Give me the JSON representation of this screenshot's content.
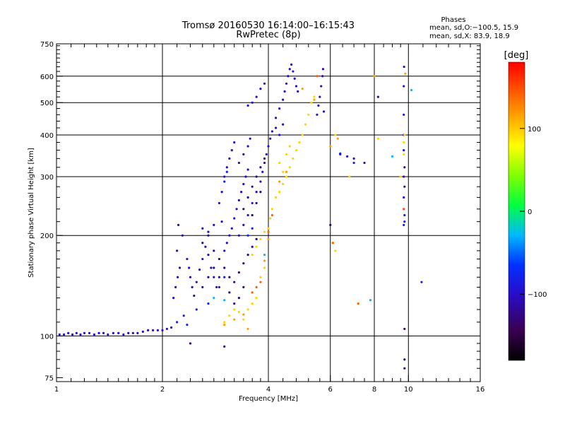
{
  "chart_data": {
    "type": "scatter",
    "title": "Tromsø 20160530 16:14:00–16:15:43",
    "subtitle": "RwPretec (8p)",
    "xlabel": "Frequency [MHz]",
    "ylabel": "Stationary phase Virtual Height [km]",
    "x_scale": "log",
    "y_scale": "log",
    "xlim": [
      1,
      16
    ],
    "ylim": [
      73,
      750
    ],
    "x_ticks": [
      1,
      2,
      4,
      6,
      8,
      10,
      16
    ],
    "x_tick_labels": [
      "1",
      "2",
      "4",
      "6",
      "8",
      "10",
      "16"
    ],
    "x_minor_ticks": [
      1.1,
      1.2,
      1.3,
      1.4,
      1.5,
      1.6,
      1.7,
      1.8,
      1.9,
      2.2,
      2.4,
      2.6,
      2.8,
      3.0,
      3.2,
      3.4,
      3.6,
      3.8,
      4.4,
      4.8,
      5.2,
      5.6,
      6.5,
      7.0,
      7.5,
      8.5,
      9.0,
      9.5,
      11,
      12,
      13,
      14,
      15
    ],
    "y_ticks": [
      75,
      100,
      200,
      300,
      400,
      500,
      600,
      750
    ],
    "y_tick_labels": [
      "75",
      "100",
      "200",
      "300",
      "400",
      "500",
      "600",
      "750"
    ],
    "y_minor_ticks": [
      80,
      85,
      90,
      95,
      110,
      120,
      130,
      140,
      150,
      160,
      170,
      180,
      190,
      220,
      240,
      260,
      280,
      320,
      340,
      360,
      380,
      420,
      440,
      460,
      480,
      520,
      540,
      560,
      580,
      620,
      640,
      660,
      680,
      700,
      720,
      740
    ],
    "x_grid": [
      2,
      4,
      6,
      8,
      10
    ],
    "y_grid": [
      100,
      200,
      300,
      400,
      500,
      600
    ],
    "grid": true,
    "stats_header": "Phases",
    "stats_lines": [
      "mean, sd,O:−100.5, 15.9",
      "mean, sd,X:  83.9, 18.9"
    ],
    "colorbar": {
      "label": "[deg]",
      "range": [
        -180,
        180
      ],
      "ticks": [
        100,
        0,
        -100
      ],
      "tick_labels": [
        "100",
        "0",
        "−100"
      ]
    },
    "series": [
      {
        "phase": -100,
        "points": [
          [
            1.02,
            101
          ],
          [
            1.05,
            101
          ],
          [
            1.08,
            102
          ],
          [
            1.11,
            101
          ],
          [
            1.14,
            102
          ],
          [
            1.17,
            101
          ],
          [
            1.2,
            102
          ],
          [
            1.24,
            102
          ],
          [
            1.28,
            101
          ],
          [
            1.32,
            102
          ],
          [
            1.36,
            102
          ],
          [
            1.4,
            101
          ],
          [
            1.45,
            102
          ],
          [
            1.5,
            102
          ],
          [
            1.55,
            101
          ],
          [
            1.6,
            102
          ],
          [
            1.65,
            102
          ],
          [
            1.7,
            102
          ],
          [
            1.76,
            103
          ],
          [
            1.82,
            104
          ],
          [
            1.88,
            104
          ],
          [
            1.94,
            104
          ],
          [
            2.0,
            104
          ],
          [
            2.06,
            105
          ],
          [
            2.12,
            106
          ],
          [
            2.15,
            130
          ],
          [
            2.18,
            140
          ],
          [
            2.21,
            150
          ],
          [
            2.24,
            160
          ],
          [
            2.2,
            180
          ],
          [
            2.28,
            200
          ],
          [
            2.22,
            215
          ],
          [
            2.35,
            170
          ],
          [
            2.38,
            160
          ],
          [
            2.4,
            150
          ],
          [
            2.43,
            140
          ],
          [
            2.46,
            132
          ],
          [
            2.5,
            145
          ],
          [
            2.55,
            158
          ],
          [
            2.6,
            170
          ],
          [
            2.65,
            185
          ],
          [
            2.7,
            175
          ],
          [
            2.75,
            160
          ],
          [
            2.8,
            150
          ],
          [
            2.85,
            140
          ],
          [
            2.9,
            150
          ],
          [
            2.6,
            210
          ],
          [
            2.7,
            205
          ],
          [
            2.8,
            215
          ],
          [
            2.95,
            220
          ],
          [
            2.9,
            250
          ],
          [
            2.95,
            270
          ],
          [
            3.0,
            300
          ],
          [
            3.05,
            320
          ],
          [
            3.1,
            340
          ],
          [
            3.15,
            360
          ],
          [
            3.2,
            380
          ],
          [
            3.3,
            330
          ],
          [
            3.4,
            350
          ],
          [
            3.5,
            370
          ],
          [
            3.55,
            390
          ],
          [
            3.0,
            180
          ],
          [
            3.05,
            190
          ],
          [
            3.1,
            200
          ],
          [
            3.15,
            210
          ],
          [
            3.2,
            225
          ],
          [
            3.25,
            240
          ],
          [
            3.3,
            255
          ],
          [
            3.35,
            270
          ],
          [
            3.4,
            285
          ],
          [
            3.45,
            300
          ],
          [
            3.5,
            315
          ],
          [
            3.3,
            200
          ],
          [
            3.4,
            215
          ],
          [
            3.5,
            230
          ],
          [
            3.6,
            250
          ],
          [
            3.7,
            270
          ],
          [
            3.8,
            290
          ],
          [
            3.85,
            310
          ],
          [
            3.9,
            330
          ],
          [
            3.95,
            350
          ],
          [
            4.0,
            370
          ],
          [
            4.05,
            390
          ],
          [
            4.1,
            410
          ],
          [
            4.2,
            420
          ],
          [
            4.3,
            400
          ],
          [
            4.4,
            430
          ],
          [
            4.2,
            450
          ],
          [
            4.3,
            480
          ],
          [
            4.4,
            510
          ],
          [
            4.45,
            540
          ],
          [
            4.5,
            570
          ],
          [
            4.55,
            600
          ],
          [
            4.6,
            630
          ],
          [
            4.65,
            650
          ],
          [
            4.7,
            620
          ],
          [
            4.75,
            590
          ],
          [
            4.8,
            560
          ],
          [
            4.85,
            540
          ],
          [
            3.5,
            490
          ],
          [
            3.6,
            500
          ],
          [
            3.7,
            520
          ],
          [
            3.8,
            550
          ],
          [
            3.9,
            570
          ],
          [
            5.5,
            460
          ],
          [
            5.55,
            490
          ],
          [
            5.6,
            520
          ],
          [
            5.65,
            560
          ],
          [
            5.7,
            600
          ],
          [
            5.72,
            630
          ],
          [
            5.75,
            470
          ],
          [
            6.4,
            350
          ],
          [
            6.7,
            345
          ],
          [
            7.0,
            340
          ],
          [
            7.5,
            330
          ],
          [
            9.7,
            240
          ],
          [
            9.7,
            260
          ],
          [
            9.75,
            280
          ],
          [
            9.7,
            300
          ],
          [
            9.75,
            320
          ],
          [
            9.7,
            360
          ],
          [
            9.7,
            400
          ],
          [
            9.7,
            460
          ],
          [
            9.7,
            560
          ],
          [
            9.72,
            640
          ]
        ]
      },
      {
        "phase": -125,
        "points": [
          [
            2.6,
            190
          ],
          [
            2.7,
            200
          ],
          [
            2.8,
            180
          ],
          [
            2.9,
            170
          ],
          [
            3.0,
            160
          ],
          [
            3.1,
            150
          ],
          [
            3.2,
            145
          ],
          [
            3.3,
            155
          ],
          [
            3.4,
            165
          ],
          [
            3.5,
            175
          ],
          [
            3.6,
            185
          ],
          [
            3.7,
            195
          ],
          [
            3.4,
            140
          ],
          [
            3.3,
            130
          ],
          [
            3.2,
            125
          ],
          [
            3.1,
            135
          ],
          [
            2.6,
            140
          ],
          [
            2.7,
            150
          ],
          [
            2.8,
            160
          ],
          [
            3.6,
            230
          ],
          [
            3.7,
            250
          ],
          [
            3.8,
            270
          ],
          [
            3.4,
            240
          ],
          [
            3.5,
            260
          ],
          [
            3.6,
            280
          ],
          [
            3.7,
            300
          ],
          [
            3.8,
            320
          ],
          [
            3.9,
            340
          ],
          [
            2.4,
            95
          ],
          [
            3.0,
            93
          ],
          [
            6.0,
            215
          ],
          [
            8.2,
            520
          ],
          [
            9.75,
            85
          ],
          [
            9.75,
            80
          ],
          [
            9.75,
            105
          ]
        ]
      },
      {
        "phase": -80,
        "points": [
          [
            2.2,
            110
          ],
          [
            2.3,
            115
          ],
          [
            2.35,
            108
          ],
          [
            2.5,
            120
          ],
          [
            2.7,
            125
          ],
          [
            2.9,
            140
          ],
          [
            3.0,
            150
          ],
          [
            3.0,
            290
          ],
          [
            3.05,
            310
          ],
          [
            6.4,
            352
          ],
          [
            7.0,
            330
          ],
          [
            9.7,
            215
          ],
          [
            9.75,
            220
          ],
          [
            9.75,
            230
          ],
          [
            10.9,
            145
          ],
          [
            3.5,
            200
          ],
          [
            3.6,
            210
          ]
        ]
      },
      {
        "phase": -30,
        "points": [
          [
            2.8,
            130
          ],
          [
            3.0,
            128
          ],
          [
            3.9,
            175
          ],
          [
            9.0,
            345
          ],
          [
            7.8,
            128
          ],
          [
            10.2,
            545
          ]
        ]
      },
      {
        "phase": 95,
        "points": [
          [
            3.0,
            110
          ],
          [
            3.1,
            115
          ],
          [
            3.2,
            120
          ],
          [
            3.3,
            118
          ],
          [
            3.4,
            112
          ],
          [
            3.5,
            120
          ],
          [
            3.6,
            125
          ],
          [
            3.7,
            130
          ],
          [
            3.8,
            150
          ],
          [
            3.9,
            160
          ],
          [
            3.6,
            175
          ],
          [
            3.7,
            185
          ],
          [
            3.8,
            195
          ],
          [
            3.9,
            205
          ],
          [
            4.0,
            210
          ],
          [
            4.05,
            225
          ],
          [
            4.1,
            240
          ],
          [
            4.2,
            260
          ],
          [
            4.3,
            270
          ],
          [
            4.4,
            285
          ],
          [
            4.5,
            300
          ],
          [
            4.6,
            320
          ],
          [
            4.7,
            340
          ],
          [
            4.8,
            360
          ],
          [
            4.9,
            380
          ],
          [
            5.0,
            400
          ],
          [
            5.1,
            430
          ],
          [
            5.2,
            460
          ],
          [
            5.3,
            500
          ],
          [
            5.4,
            520
          ],
          [
            4.3,
            330
          ],
          [
            4.4,
            310
          ],
          [
            4.5,
            350
          ],
          [
            4.6,
            370
          ],
          [
            6.2,
            180
          ],
          [
            6.8,
            300
          ],
          [
            9.7,
            380
          ],
          [
            9.75,
            400
          ],
          [
            9.7,
            350
          ],
          [
            8.2,
            390
          ],
          [
            9.5,
            300
          ],
          [
            6.2,
            400
          ]
        ]
      },
      {
        "phase": 115,
        "points": [
          [
            3.0,
            108
          ],
          [
            3.2,
            112
          ],
          [
            3.4,
            116
          ],
          [
            3.5,
            105
          ],
          [
            3.9,
            168
          ],
          [
            4.0,
            195
          ],
          [
            4.3,
            290
          ],
          [
            4.5,
            310
          ],
          [
            5.4,
            510
          ],
          [
            5.0,
            550
          ],
          [
            6.3,
            390
          ],
          [
            8.0,
            600
          ],
          [
            9.8,
            610
          ],
          [
            6.0,
            370
          ]
        ]
      },
      {
        "phase": 140,
        "points": [
          [
            3.7,
            140
          ],
          [
            3.8,
            145
          ],
          [
            3.6,
            135
          ],
          [
            4.0,
            205
          ],
          [
            4.1,
            230
          ],
          [
            5.5,
            600
          ],
          [
            6.1,
            190
          ],
          [
            7.2,
            125
          ],
          [
            9.7,
            240
          ]
        ]
      }
    ]
  }
}
